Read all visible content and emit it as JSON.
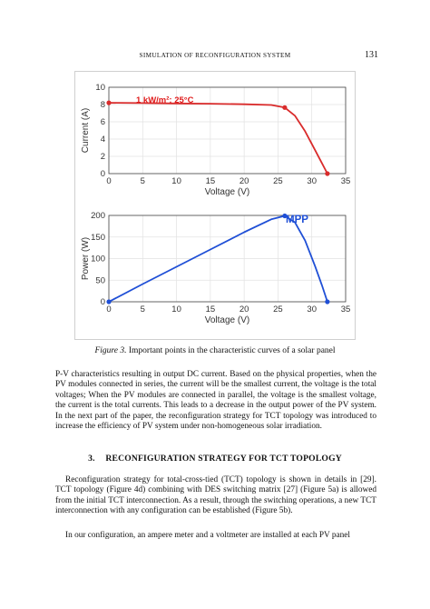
{
  "running_head": "SIMULATION OF RECONFIGURATION SYSTEM",
  "page_number": "131",
  "colors": {
    "iv_curve": "#d92b2b",
    "pv_curve": "#1f4fd6",
    "mpp_label": "#1f4fd6",
    "iv_annotation": "#e01b1b"
  },
  "chart_data": [
    {
      "type": "line",
      "title": "",
      "xlabel": "Voltage (V)",
      "ylabel": "Current (A)",
      "xlim": [
        0,
        35
      ],
      "ylim": [
        0,
        10
      ],
      "xticks": [
        "0",
        "5",
        "10",
        "15",
        "20",
        "25",
        "30",
        "35"
      ],
      "yticks": [
        "0",
        "2",
        "4",
        "6",
        "8",
        "10"
      ],
      "grid": true,
      "annotation": "1 kW/m²; 25°C",
      "series": [
        {
          "x": [
            0,
            5,
            10,
            15,
            20,
            24,
            26,
            27.5,
            29,
            30.5,
            31.5,
            32.3
          ],
          "y": [
            8.2,
            8.17,
            8.13,
            8.09,
            8.03,
            7.95,
            7.65,
            6.7,
            4.9,
            2.7,
            1.2,
            0
          ]
        }
      ],
      "key_points": {
        "x": [
          0,
          26,
          32.3
        ],
        "y": [
          8.2,
          7.65,
          0
        ]
      }
    },
    {
      "type": "line",
      "title": "",
      "xlabel": "Voltage (V)",
      "ylabel": "Power (W)",
      "xlim": [
        0,
        35
      ],
      "ylim": [
        0,
        200
      ],
      "xticks": [
        "0",
        "5",
        "10",
        "15",
        "20",
        "25",
        "30",
        "35"
      ],
      "yticks": [
        "0",
        "50",
        "100",
        "150",
        "200"
      ],
      "grid": true,
      "annotation": "MPP",
      "series": [
        {
          "x": [
            0,
            5,
            10,
            15,
            20,
            24,
            26,
            27.5,
            29,
            30.5,
            31.5,
            32.3
          ],
          "y": [
            0,
            41,
            81,
            121,
            161,
            191,
            199,
            184,
            142,
            82,
            38,
            0
          ]
        }
      ],
      "key_points": {
        "x": [
          0,
          26,
          32.3
        ],
        "y": [
          0,
          199,
          0
        ]
      }
    }
  ],
  "caption": {
    "label": "Figure 3.",
    "text": "Important points in the characteristic curves of a solar panel"
  },
  "body": {
    "para1": "P-V characteristics resulting in output DC current. Based on the physical properties, when the PV modules connected in series, the current will be the smallest current, the voltage is the total voltages; When the PV modules are connected in parallel, the voltage is the smallest voltage, the current is the total currents. This leads to a decrease in the output power of the PV system. In the next part of the paper, the reconfiguration strategy for TCT topology was introduced to increase the efficiency of PV system under non-homogeneous solar irradiation.",
    "section_number": "3.",
    "section_title": "RECONFIGURATION STRATEGY FOR TCT TOPOLOGY",
    "para2": "Reconfiguration strategy for total-cross-tied (TCT) topology is shown in details in [29]. TCT topology (Figure 4d) combining with DES switching matrix [27] (Figure 5a) is allowed from the initial TCT interconnection. As a result, through the switching operations, a new TCT interconnection with any configuration can be established (Figure 5b).",
    "para3": "In our configuration, an ampere meter and a voltmeter are installed at each PV panel"
  }
}
